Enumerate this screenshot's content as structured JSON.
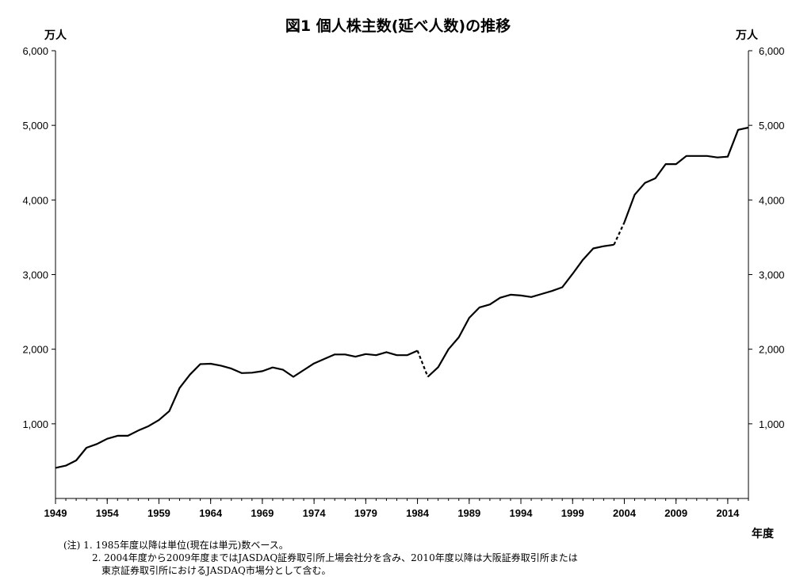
{
  "chart_data": {
    "type": "line",
    "title": "図1 個人株主数(延べ人数)の推移",
    "ylabel_left": "万人",
    "ylabel_right": "万人",
    "xlabel": "年度",
    "ylim": [
      0,
      6000
    ],
    "xlim": [
      1949,
      2016
    ],
    "y_ticks": [
      "1,000",
      "2,000",
      "3,000",
      "4,000",
      "5,000",
      "6,000"
    ],
    "y_tick_values": [
      1000,
      2000,
      3000,
      4000,
      5000,
      6000
    ],
    "x_ticks": [
      "1949",
      "1954",
      "1959",
      "1964",
      "1969",
      "1974",
      "1979",
      "1984",
      "1989",
      "1994",
      "1999",
      "2004",
      "2009",
      "2014"
    ],
    "x_tick_values": [
      1949,
      1954,
      1959,
      1964,
      1969,
      1974,
      1979,
      1984,
      1989,
      1994,
      1999,
      2004,
      2009,
      2014
    ],
    "line_color": "#000000",
    "grid": false,
    "series": [
      {
        "style": "solid",
        "x": [
          1949,
          1950,
          1951,
          1952,
          1953,
          1954,
          1955,
          1956,
          1957,
          1958,
          1959,
          1960,
          1961,
          1962,
          1963,
          1964,
          1965,
          1966,
          1967,
          1968,
          1969,
          1970,
          1971,
          1972,
          1973,
          1974,
          1975,
          1976,
          1977,
          1978,
          1979,
          1980,
          1981,
          1982,
          1983,
          1984
        ],
        "y": [
          410,
          440,
          510,
          680,
          730,
          800,
          840,
          840,
          910,
          970,
          1050,
          1170,
          1480,
          1660,
          1800,
          1805,
          1780,
          1740,
          1680,
          1685,
          1705,
          1755,
          1725,
          1630,
          1720,
          1810,
          1870,
          1930,
          1930,
          1900,
          1935,
          1920,
          1960,
          1920,
          1920,
          1980
        ]
      },
      {
        "style": "dashed",
        "x": [
          1984,
          1985
        ],
        "y": [
          1980,
          1630
        ]
      },
      {
        "style": "solid",
        "x": [
          1985,
          1986,
          1987,
          1988,
          1989,
          1990,
          1991,
          1992,
          1993,
          1994,
          1995,
          1996,
          1997,
          1998,
          1999,
          2000,
          2001,
          2002,
          2003
        ],
        "y": [
          1630,
          1760,
          2000,
          2160,
          2420,
          2560,
          2600,
          2690,
          2730,
          2720,
          2700,
          2740,
          2780,
          2830,
          3010,
          3200,
          3350,
          3380,
          3400
        ]
      },
      {
        "style": "dashed",
        "x": [
          2003,
          2004
        ],
        "y": [
          3400,
          3700
        ]
      },
      {
        "style": "solid",
        "x": [
          2004,
          2005,
          2006,
          2007,
          2008,
          2009,
          2010,
          2011,
          2012,
          2013,
          2014,
          2015,
          2016
        ],
        "y": [
          3700,
          4070,
          4230,
          4290,
          4480,
          4480,
          4590,
          4590,
          4590,
          4570,
          4580,
          4940,
          4970
        ]
      }
    ]
  },
  "notes": [
    "(注) 1. 1985年度以降は単位(現在は単元)数ベース。",
    "　　　2. 2004年度から2009年度まではJASDAQ証券取引所上場会社分を含み、2010年度以降は大阪証券取引所または",
    "　　　　東京証券取引所におけるJASDAQ市場分として含む。"
  ]
}
